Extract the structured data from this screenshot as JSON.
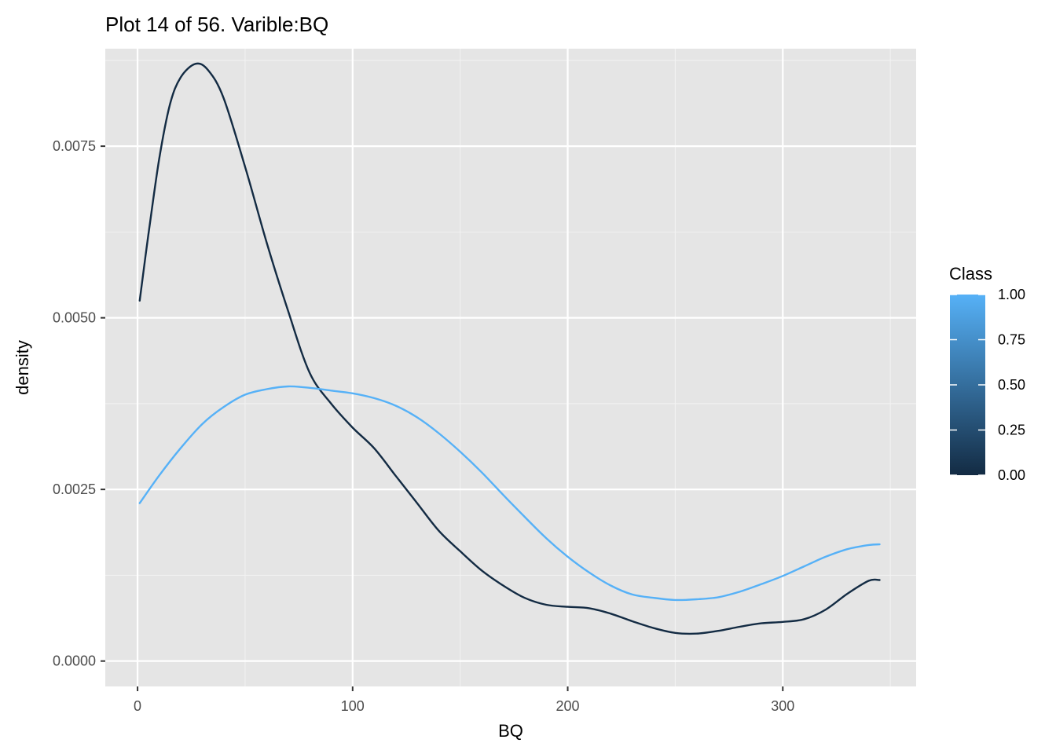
{
  "chart_data": {
    "type": "line",
    "title": "Plot 14 of 56. Varible:BQ",
    "xlabel": "BQ",
    "ylabel": "density",
    "xlim": [
      -15,
      362
    ],
    "ylim": [
      -0.00037,
      0.00892
    ],
    "x_ticks": [
      0,
      100,
      200,
      300
    ],
    "x_tick_labels": [
      "0",
      "100",
      "200",
      "300"
    ],
    "y_ticks": [
      0,
      0.0025,
      0.005,
      0.0075
    ],
    "y_tick_labels": [
      "0.0000",
      "0.0025",
      "0.0050",
      "0.0075"
    ],
    "grid": true,
    "legend": {
      "title": "Class",
      "position": "right",
      "type": "colorbar",
      "ticks": [
        0,
        0.25,
        0.5,
        0.75,
        1
      ],
      "tick_labels": [
        "0.00",
        "0.25",
        "0.50",
        "0.75",
        "1.00"
      ],
      "color_low": "#132b43",
      "color_high": "#56b1f7"
    },
    "series": [
      {
        "class_value": 0,
        "color": "#132b43",
        "x": [
          1,
          5,
          10,
          15,
          20,
          27,
          33,
          40,
          50,
          60,
          70,
          80,
          90,
          100,
          110,
          120,
          130,
          140,
          150,
          160,
          170,
          180,
          190,
          200,
          210,
          220,
          230,
          240,
          250,
          260,
          270,
          280,
          290,
          300,
          310,
          320,
          330,
          340,
          345
        ],
        "y": [
          0.00525,
          0.0062,
          0.0073,
          0.0081,
          0.0085,
          0.0087,
          0.0086,
          0.0082,
          0.0072,
          0.0061,
          0.0051,
          0.0042,
          0.00375,
          0.0034,
          0.0031,
          0.0027,
          0.0023,
          0.0019,
          0.0016,
          0.00132,
          0.0011,
          0.00092,
          0.00082,
          0.00079,
          0.00077,
          0.00069,
          0.00058,
          0.00048,
          0.00041,
          0.0004,
          0.00044,
          0.0005,
          0.00055,
          0.00057,
          0.00061,
          0.00075,
          0.00098,
          0.00117,
          0.00118
        ]
      },
      {
        "class_value": 1,
        "color": "#56b1f7",
        "x": [
          1,
          10,
          20,
          30,
          40,
          50,
          60,
          70,
          80,
          90,
          100,
          110,
          120,
          130,
          140,
          150,
          160,
          170,
          180,
          190,
          200,
          210,
          220,
          230,
          240,
          250,
          260,
          270,
          280,
          290,
          300,
          310,
          320,
          330,
          340,
          345
        ],
        "y": [
          0.0023,
          0.0027,
          0.0031,
          0.00345,
          0.0037,
          0.00388,
          0.00396,
          0.004,
          0.00398,
          0.00394,
          0.0039,
          0.00383,
          0.00372,
          0.00355,
          0.00332,
          0.00305,
          0.00275,
          0.00242,
          0.0021,
          0.00179,
          0.00152,
          0.00129,
          0.0011,
          0.00097,
          0.00092,
          0.00089,
          0.0009,
          0.00093,
          0.00101,
          0.00112,
          0.00124,
          0.00138,
          0.00152,
          0.00163,
          0.00169,
          0.0017
        ]
      }
    ]
  }
}
